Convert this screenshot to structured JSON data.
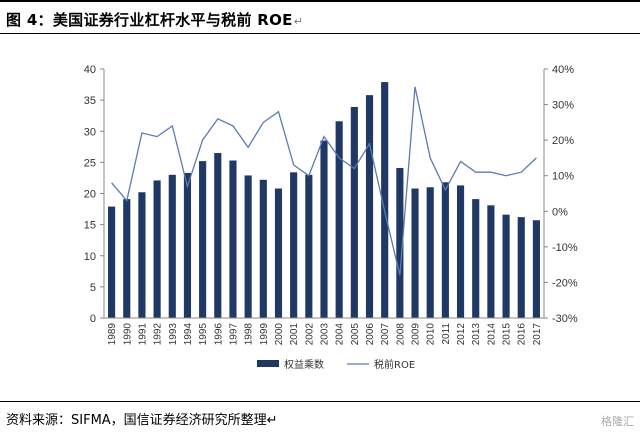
{
  "header": {
    "title": "图 4：美国证券行业杠杆水平与税前 ROE",
    "para_mark": "↵"
  },
  "footer": {
    "source": "资料来源：SIFMA，国信证券经济研究所整理↵",
    "watermark": "格隆汇"
  },
  "colors": {
    "bar": "#1f3864",
    "line": "#5b7bb2"
  },
  "chart_data": {
    "type": "bar",
    "categories": [
      "1989",
      "1990",
      "1991",
      "1992",
      "1993",
      "1994",
      "1995",
      "1996",
      "1997",
      "1998",
      "1999",
      "2000",
      "2001",
      "2002",
      "2003",
      "2004",
      "2005",
      "2006",
      "2007",
      "2008",
      "2009",
      "2010",
      "2011",
      "2012",
      "2013",
      "2014",
      "2015",
      "2016",
      "2017"
    ],
    "y_left": {
      "min": 0,
      "max": 40,
      "ticks": [
        "0",
        "5",
        "10",
        "15",
        "20",
        "25",
        "30",
        "35",
        "40"
      ]
    },
    "y_right": {
      "min": -30,
      "max": 40,
      "ticks": [
        "-30%",
        "-20%",
        "-10%",
        "0%",
        "10%",
        "20%",
        "30%",
        "40%"
      ]
    },
    "grid": false,
    "legend_position": "bottom",
    "series": [
      {
        "name": "权益乘数",
        "type": "bar",
        "axis": "left",
        "values": [
          17.9,
          19.1,
          20.2,
          22.1,
          23.0,
          23.3,
          25.2,
          26.5,
          25.3,
          22.9,
          22.2,
          20.8,
          23.4,
          23.0,
          28.5,
          31.6,
          33.9,
          35.8,
          37.9,
          24.1,
          20.8,
          21.0,
          21.8,
          21.3,
          19.1,
          18.1,
          16.6,
          16.2,
          15.7
        ]
      },
      {
        "name": "税前ROE",
        "type": "line",
        "axis": "right",
        "values": [
          8,
          3,
          22,
          21,
          24,
          7,
          20,
          26,
          24,
          18,
          25,
          28,
          13,
          10,
          21,
          15,
          12,
          19,
          0,
          -18,
          35,
          15,
          6,
          14,
          11,
          11,
          10,
          11,
          15
        ]
      }
    ]
  }
}
